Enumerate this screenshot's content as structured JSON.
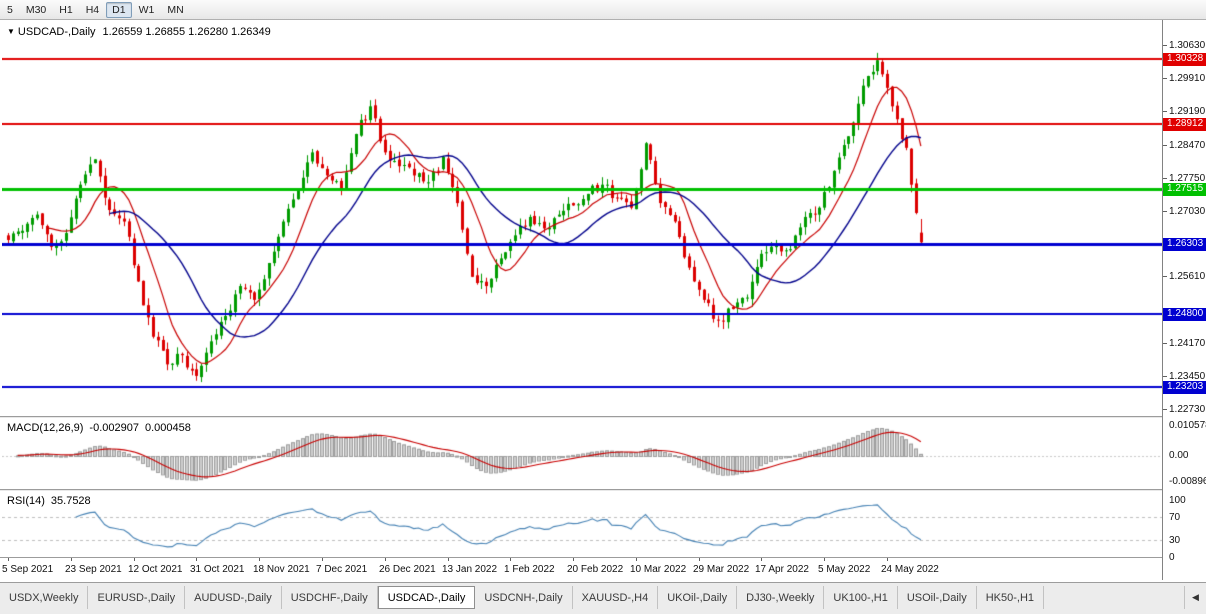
{
  "toolbar": {
    "timeframes": [
      "5",
      "M30",
      "H1",
      "H4",
      "D1",
      "W1",
      "MN"
    ],
    "active_timeframe": "D1"
  },
  "chart": {
    "symbol_marker": "▼",
    "title": "USDCAD-,Daily",
    "ohlc": "1.26559 1.26855 1.26280 1.26349",
    "up_color": "#009b00",
    "down_color": "#dc0000",
    "ma_fast_color": "#c80000",
    "ma_slow_color": "#00008b"
  },
  "chart_data": {
    "type": "candlestick",
    "symbol": "USDCAD-",
    "period": "Daily",
    "current_ohlc": {
      "open": 1.26559,
      "high": 1.26855,
      "low": 1.2628,
      "close": 1.26349
    },
    "price_axis_range": [
      1.2258,
      1.3113
    ],
    "y_tick_labels": [
      "1.30630",
      "1.29910",
      "1.29190",
      "1.28470",
      "1.27750",
      "1.27030",
      "1.25610",
      "1.24170",
      "1.23450",
      "1.22730"
    ],
    "x_tick_labels": [
      "5 Sep 2021",
      "23 Sep 2021",
      "12 Oct 2021",
      "31 Oct 2021",
      "18 Nov 2021",
      "7 Dec 2021",
      "26 Dec 2021",
      "13 Jan 2022",
      "1 Feb 2022",
      "20 Feb 2022",
      "10 Mar 2022",
      "29 Mar 2022",
      "17 Apr 2022",
      "5 May 2022",
      "24 May 2022"
    ],
    "x_label_candle_step": 13,
    "candles_count": 190,
    "anchor_step": 3,
    "anchor_closes": [
      1.264,
      1.266,
      1.2695,
      1.2625,
      1.2655,
      1.276,
      1.2815,
      1.2705,
      1.268,
      1.255,
      1.243,
      1.237,
      1.239,
      1.2345,
      1.242,
      1.2475,
      1.254,
      1.251,
      1.259,
      1.268,
      1.275,
      1.283,
      1.278,
      1.275,
      1.287,
      1.293,
      1.283,
      1.28,
      1.278,
      1.2765,
      1.282,
      1.272,
      1.256,
      1.254,
      1.26,
      1.265,
      1.269,
      1.2665,
      1.2695,
      1.2715,
      1.274,
      1.276,
      1.273,
      1.271,
      1.285,
      1.272,
      1.268,
      1.258,
      1.251,
      1.2465,
      1.249,
      1.2515,
      1.261,
      1.263,
      1.262,
      1.269,
      1.271,
      1.279,
      1.2865,
      1.2975,
      1.303,
      1.293,
      1.284,
      1.26349
    ],
    "last_candle": [
      1.26559,
      1.26855,
      1.2628,
      1.26349
    ],
    "moving_averages": [
      {
        "period": 9,
        "color": "#c80000"
      },
      {
        "period": 22,
        "color": "#00008b"
      }
    ],
    "horizontal_lines": [
      {
        "price": 1.30328,
        "label": "1.30328",
        "color": "#e00000",
        "width": 2
      },
      {
        "price": 1.28912,
        "label": "1.28912",
        "color": "#e00000",
        "width": 2
      },
      {
        "price": 1.27515,
        "label": "1.27515",
        "color": "#00c000",
        "width": 3
      },
      {
        "price": 1.26303,
        "label": "1.26303",
        "color": "#0000d0",
        "width": 3
      },
      {
        "price": 1.248,
        "label": "1.24800",
        "color": "#0000d0",
        "width": 2
      },
      {
        "price": 1.23203,
        "label": "1.23203",
        "color": "#0000d0",
        "width": 2
      }
    ]
  },
  "macd": {
    "label": "MACD(12,26,9)",
    "value_main": "-0.002907",
    "value_signal": "0.000458",
    "y_ticks": [
      "0.010578",
      "0.00",
      "-0.00896"
    ],
    "histogram_color": "#cfcfcf",
    "histogram_border": "#9e9e9e",
    "signal_color": "#c80000"
  },
  "rsi": {
    "label": "RSI(14)",
    "value": "35.7528",
    "y_ticks": [
      "100",
      "70",
      "30",
      "0"
    ],
    "levels": [
      70,
      30
    ],
    "line_color": "#4682b4"
  },
  "tabs": {
    "items": [
      "USDX,Weekly",
      "EURUSD-,Daily",
      "AUDUSD-,Daily",
      "USDCHF-,Daily",
      "USDCAD-,Daily",
      "USDCNH-,Daily",
      "XAUUSD-,H4",
      "UKOil-,Daily",
      "DJ30-,Weekly",
      "UK100-,H1",
      "USOil-,Daily",
      "HK50-,H1"
    ],
    "active": "USDCAD-,Daily",
    "scroll_left": "◀"
  }
}
